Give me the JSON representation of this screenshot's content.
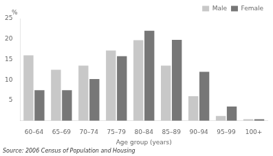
{
  "chart_data": {
    "type": "bar",
    "categories": [
      "60–64",
      "65–69",
      "70–74",
      "75–79",
      "80–84",
      "85–89",
      "90–94",
      "95–99",
      "100+"
    ],
    "series": [
      {
        "name": "Male",
        "color": "#c8c8c8",
        "values": [
          16.0,
          12.5,
          13.5,
          17.2,
          19.7,
          13.5,
          6.0,
          1.2,
          0.4
        ]
      },
      {
        "name": "Female",
        "color": "#777777",
        "values": [
          7.5,
          7.5,
          10.2,
          15.8,
          22.0,
          19.8,
          12.0,
          3.5,
          0.4
        ]
      }
    ],
    "ylabel": "%",
    "xlabel": "Age group (years)",
    "ylim": [
      0,
      25
    ],
    "yticks": [
      5,
      10,
      15,
      20,
      25
    ],
    "grid": false,
    "legend": "upper right",
    "annotations": [
      "Source: 2006 Census of Population and Housing"
    ]
  }
}
